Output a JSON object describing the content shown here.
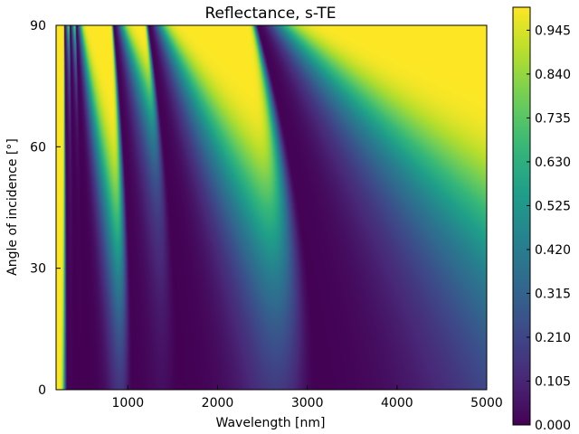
{
  "chart_data": {
    "type": "heatmap",
    "title": "Reflectance, s-TE",
    "xlabel": "Wavelength [nm]",
    "ylabel": "Angle of incidence [°]",
    "xlim": [
      200,
      5000
    ],
    "ylim": [
      0,
      90
    ],
    "xticks": [
      "1000",
      "2000",
      "3000",
      "4000",
      "5000"
    ],
    "xtick_values": [
      1000,
      2000,
      3000,
      4000,
      5000
    ],
    "yticks": [
      "0",
      "30",
      "60",
      "90"
    ],
    "ytick_values": [
      0,
      30,
      60,
      90
    ],
    "colormap": "viridis",
    "colorbar": {
      "range": [
        0,
        1
      ],
      "ticks": [
        "0.000",
        "0.105",
        "0.210",
        "0.315",
        "0.420",
        "0.525",
        "0.630",
        "0.735",
        "0.840",
        "0.945"
      ],
      "tick_values": [
        0.0,
        0.105,
        0.21,
        0.315,
        0.42,
        0.525,
        0.63,
        0.735,
        0.84,
        0.945
      ]
    },
    "reflectance_minima": [
      {
        "wavelength_at_0deg": 3100,
        "wavelength_at_90deg": 2450
      },
      {
        "wavelength_at_0deg": 1560,
        "wavelength_at_90deg": 1230
      },
      {
        "wavelength_at_0deg": 1050,
        "wavelength_at_90deg": 840
      },
      {
        "wavelength_at_0deg": 500,
        "wavelength_at_90deg": 420
      },
      {
        "wavelength_at_0deg": 400,
        "wavelength_at_90deg": 350
      },
      {
        "wavelength_at_0deg": 320,
        "wavelength_at_90deg": 290
      }
    ],
    "grid": false
  }
}
